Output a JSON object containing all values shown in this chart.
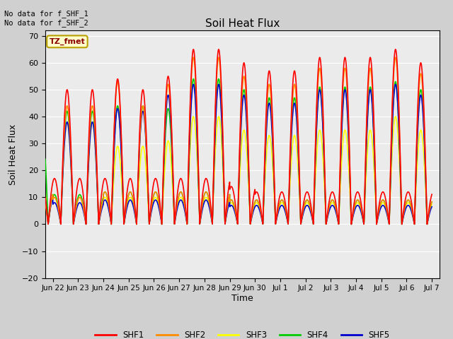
{
  "title": "Soil Heat Flux",
  "ylabel": "Soil Heat Flux",
  "xlabel": "Time",
  "top_left_text": "No data for f_SHF_1\nNo data for f_SHF_2",
  "legend_label_text": "TZ_fmet",
  "ylim": [
    -20,
    72
  ],
  "yticks": [
    -20,
    -10,
    0,
    10,
    20,
    30,
    40,
    50,
    60,
    70
  ],
  "series_colors": {
    "SHF1": "#ff0000",
    "SHF2": "#ff8c00",
    "SHF3": "#ffff00",
    "SHF4": "#00cc00",
    "SHF5": "#0000cc"
  },
  "fig_bg_color": "#d0d0d0",
  "plot_bg_color": "#ebebeb",
  "grid_color": "#ffffff",
  "linewidth": 1.2,
  "tick_positions": [
    1,
    2,
    3,
    4,
    5,
    6,
    7,
    8,
    9,
    10,
    11,
    12,
    13,
    14,
    15,
    16
  ],
  "tick_labels": [
    "Jun 22",
    "Jun 23",
    "Jun 24",
    "Jun 25",
    "Jun 26",
    "Jun 27",
    "Jun 28",
    "Jun 29",
    "Jun 30",
    "Jul 1",
    "Jul 2",
    "Jul 3",
    "Jul 4",
    "Jul 5",
    "Jul 6",
    "Jul 7"
  ]
}
